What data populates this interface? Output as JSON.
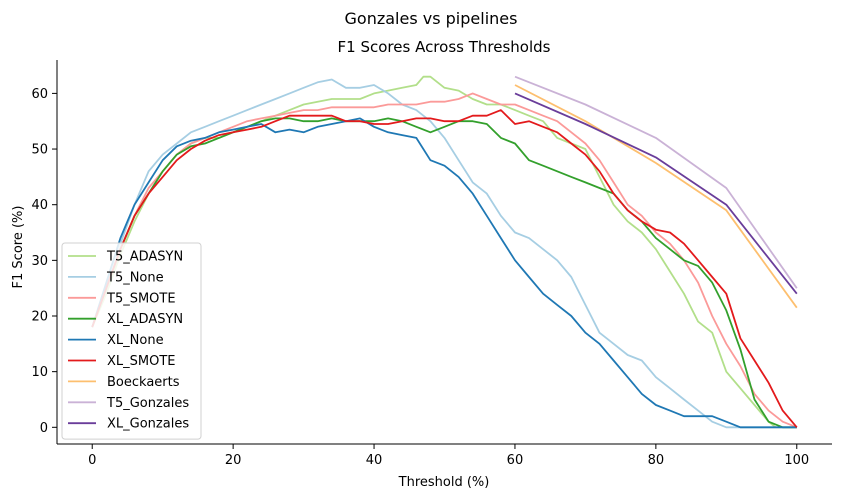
{
  "suptitle": "Gonzales vs pipelines",
  "chart_data": {
    "type": "line",
    "title": "F1 Scores Across Thresholds",
    "xlabel": "Threshold (%)",
    "ylabel": "F1 Score (%)",
    "xlim": [
      -5,
      105
    ],
    "ylim": [
      -3,
      66
    ],
    "xticks": [
      0,
      20,
      40,
      60,
      80,
      100
    ],
    "yticks": [
      0,
      10,
      20,
      30,
      40,
      50,
      60
    ],
    "legend_position": "lower-left",
    "grid": false,
    "series": [
      {
        "name": "T5_ADASYN",
        "color": "#b2df8a",
        "x": [
          0,
          2,
          4,
          6,
          8,
          10,
          12,
          14,
          16,
          18,
          20,
          22,
          24,
          26,
          28,
          30,
          32,
          34,
          36,
          38,
          40,
          42,
          44,
          46,
          47,
          48,
          50,
          52,
          54,
          56,
          58,
          60,
          62,
          64,
          66,
          68,
          70,
          72,
          74,
          76,
          78,
          80,
          82,
          84,
          86,
          88,
          90,
          92,
          94,
          96,
          97
        ],
        "y": [
          18,
          24,
          31,
          37,
          42,
          46,
          49,
          51,
          52,
          52,
          53,
          54,
          55,
          56,
          57,
          58,
          58.5,
          59,
          59,
          59,
          60,
          60.5,
          61,
          61.5,
          63,
          63,
          61,
          60.5,
          59,
          58,
          58,
          57,
          56,
          55,
          52,
          51,
          50,
          45,
          40,
          37,
          35,
          32,
          28,
          24,
          19,
          17,
          10,
          7,
          4,
          1,
          0
        ]
      },
      {
        "name": "T5_None",
        "color": "#a6cee3",
        "x": [
          0,
          2,
          4,
          6,
          8,
          10,
          12,
          14,
          16,
          18,
          20,
          22,
          24,
          26,
          28,
          30,
          32,
          34,
          36,
          38,
          40,
          42,
          44,
          46,
          48,
          50,
          52,
          54,
          56,
          58,
          60,
          62,
          64,
          66,
          68,
          70,
          72,
          74,
          76,
          78,
          80,
          82,
          84,
          86,
          88,
          90,
          92,
          94,
          96,
          98,
          100
        ],
        "y": [
          18,
          25,
          33,
          40,
          46,
          49,
          51,
          53,
          54,
          55,
          56,
          57,
          58,
          59,
          60,
          61,
          62,
          62.5,
          61,
          61,
          61.5,
          60,
          58,
          57,
          55,
          52,
          48,
          44,
          42,
          38,
          35,
          34,
          32,
          30,
          27,
          22,
          17,
          15,
          13,
          12,
          9,
          7,
          5,
          3,
          1,
          0,
          0,
          0,
          0,
          0,
          0
        ]
      },
      {
        "name": "T5_SMOTE",
        "color": "#fb9a99",
        "x": [
          0,
          2,
          4,
          6,
          8,
          10,
          12,
          14,
          16,
          18,
          20,
          22,
          24,
          26,
          28,
          30,
          32,
          34,
          36,
          38,
          40,
          42,
          44,
          46,
          48,
          50,
          52,
          54,
          56,
          58,
          60,
          62,
          64,
          66,
          68,
          70,
          72,
          74,
          76,
          78,
          80,
          82,
          84,
          86,
          88,
          90,
          92,
          94,
          96,
          98,
          100
        ],
        "y": [
          18,
          25,
          32,
          38,
          43,
          46,
          49,
          51,
          52,
          53,
          54,
          55,
          55.5,
          56,
          56.5,
          57,
          57,
          57.5,
          57.5,
          57.5,
          57.5,
          58,
          58,
          58,
          58.5,
          58.5,
          59,
          60,
          59,
          58,
          58,
          57,
          56,
          55,
          53,
          51,
          48,
          44,
          40,
          38,
          35,
          33,
          30,
          26,
          20,
          15,
          11,
          6,
          3,
          1,
          0
        ]
      },
      {
        "name": "XL_ADASYN",
        "color": "#33a02c",
        "x": [
          0,
          2,
          4,
          6,
          8,
          10,
          12,
          14,
          16,
          18,
          20,
          22,
          24,
          26,
          28,
          30,
          32,
          34,
          36,
          38,
          40,
          42,
          44,
          46,
          48,
          50,
          52,
          54,
          56,
          58,
          60,
          62,
          64,
          66,
          68,
          70,
          72,
          74,
          76,
          78,
          80,
          82,
          84,
          86,
          88,
          90,
          92,
          94,
          96,
          98,
          100
        ],
        "y": [
          18,
          25,
          32,
          38,
          42,
          46,
          49,
          50.5,
          51,
          52,
          53,
          54,
          55,
          55.5,
          55.5,
          55,
          55,
          55.5,
          55,
          55,
          55,
          55.5,
          55,
          54,
          53,
          54,
          55,
          55,
          54.5,
          52,
          51,
          48,
          47,
          46,
          45,
          44,
          43,
          42,
          39,
          37,
          34,
          32,
          30,
          29,
          26,
          21,
          14,
          5,
          1,
          0,
          0
        ]
      },
      {
        "name": "XL_None",
        "color": "#1f78b4",
        "x": [
          0,
          2,
          4,
          6,
          8,
          10,
          12,
          14,
          16,
          18,
          20,
          22,
          24,
          26,
          28,
          30,
          32,
          34,
          36,
          38,
          40,
          42,
          44,
          46,
          48,
          50,
          52,
          54,
          56,
          58,
          60,
          62,
          64,
          66,
          68,
          70,
          72,
          74,
          76,
          78,
          80,
          82,
          84,
          86,
          88,
          90,
          92,
          94,
          96,
          98,
          100
        ],
        "y": [
          18,
          26,
          34,
          40,
          44,
          48,
          50.5,
          51.5,
          52,
          53,
          53.5,
          54,
          54.5,
          53,
          53.5,
          53,
          54,
          54.5,
          55,
          55.5,
          54,
          53,
          52.5,
          52,
          48,
          47,
          45,
          42,
          38,
          34,
          30,
          27,
          24,
          22,
          20,
          17,
          15,
          12,
          9,
          6,
          4,
          3,
          2,
          2,
          2,
          1,
          0,
          0,
          0,
          0,
          0
        ]
      },
      {
        "name": "XL_SMOTE",
        "color": "#e31a1c",
        "x": [
          0,
          2,
          4,
          6,
          8,
          10,
          12,
          14,
          16,
          18,
          20,
          22,
          24,
          26,
          28,
          30,
          32,
          34,
          36,
          38,
          40,
          42,
          44,
          46,
          48,
          50,
          52,
          54,
          56,
          58,
          60,
          62,
          64,
          66,
          68,
          70,
          72,
          74,
          76,
          78,
          80,
          82,
          84,
          86,
          88,
          90,
          92,
          94,
          96,
          98,
          100
        ],
        "y": [
          18,
          25,
          32,
          38,
          42,
          45,
          48,
          50,
          51.5,
          52.5,
          53,
          53.5,
          54,
          55,
          56,
          56,
          56,
          56,
          55,
          55,
          54.5,
          54.5,
          55,
          55.5,
          55.5,
          55,
          55,
          56,
          56,
          57,
          54.5,
          55,
          54,
          53,
          51,
          49,
          46,
          42,
          39,
          37,
          35.5,
          35,
          33,
          30,
          27,
          24,
          16,
          12,
          8,
          3,
          0
        ]
      },
      {
        "name": "Boeckaerts",
        "color": "#fdbf6f",
        "x": [
          60,
          70,
          80,
          90,
          100
        ],
        "y": [
          61.5,
          55,
          47.5,
          39,
          21.5
        ]
      },
      {
        "name": "T5_Gonzales",
        "color": "#cab2d6",
        "x": [
          60,
          70,
          80,
          90,
          100
        ],
        "y": [
          63,
          58,
          52,
          43,
          25
        ]
      },
      {
        "name": "XL_Gonzales",
        "color": "#6a3d9a",
        "x": [
          60,
          70,
          80,
          90,
          100
        ],
        "y": [
          60,
          54.5,
          48.5,
          40,
          24
        ]
      }
    ]
  }
}
